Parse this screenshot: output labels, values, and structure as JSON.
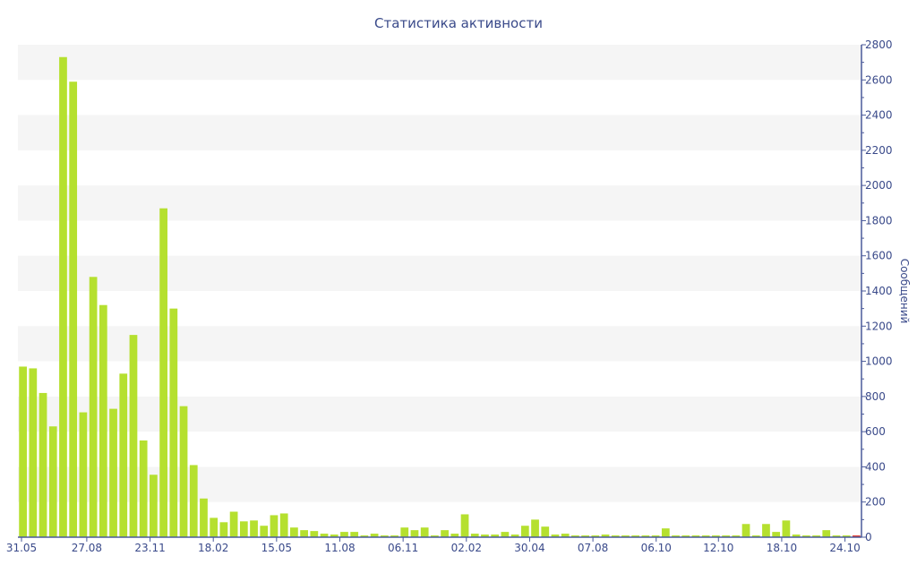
{
  "chart_data": {
    "type": "bar",
    "title": "Статистика активности",
    "xlabel": "",
    "ylabel": "Сообщений",
    "ylim": [
      0,
      2800
    ],
    "yticks": [
      0,
      200,
      400,
      600,
      800,
      1000,
      1200,
      1400,
      1600,
      1800,
      2000,
      2200,
      2400,
      2600,
      2800
    ],
    "y_axis_side": "right",
    "grid": "alternating horizontal bands",
    "x_tick_labels": [
      "31.05",
      "27.08",
      "23.11",
      "18.02",
      "15.05",
      "11.08",
      "06.11",
      "02.02",
      "30.04",
      "07.08",
      "06.10",
      "12.10",
      "18.10",
      "24.10"
    ],
    "x_tick_positions": [
      0,
      6.5,
      12.8,
      19.1,
      25.4,
      31.7,
      38.0,
      44.3,
      50.6,
      56.9,
      63.2,
      69.4,
      75.7,
      82.0
    ],
    "values": [
      970,
      960,
      820,
      630,
      2730,
      2590,
      710,
      1480,
      1320,
      730,
      930,
      1150,
      550,
      355,
      1870,
      1300,
      745,
      410,
      220,
      110,
      85,
      145,
      90,
      95,
      65,
      125,
      135,
      55,
      40,
      35,
      20,
      15,
      30,
      30,
      10,
      20,
      10,
      10,
      55,
      40,
      55,
      10,
      40,
      20,
      130,
      20,
      15,
      15,
      30,
      15,
      65,
      100,
      60,
      15,
      20,
      10,
      10,
      10,
      15,
      10,
      10,
      10,
      10,
      10,
      50,
      10,
      10,
      10,
      10,
      10,
      10,
      10,
      75,
      10,
      75,
      30,
      95,
      15,
      10,
      10,
      40,
      10,
      10,
      10
    ],
    "bar_color": "#b5e02f",
    "last_bar_color": "#e03a2f",
    "axis_color": "#4a5a9a"
  }
}
